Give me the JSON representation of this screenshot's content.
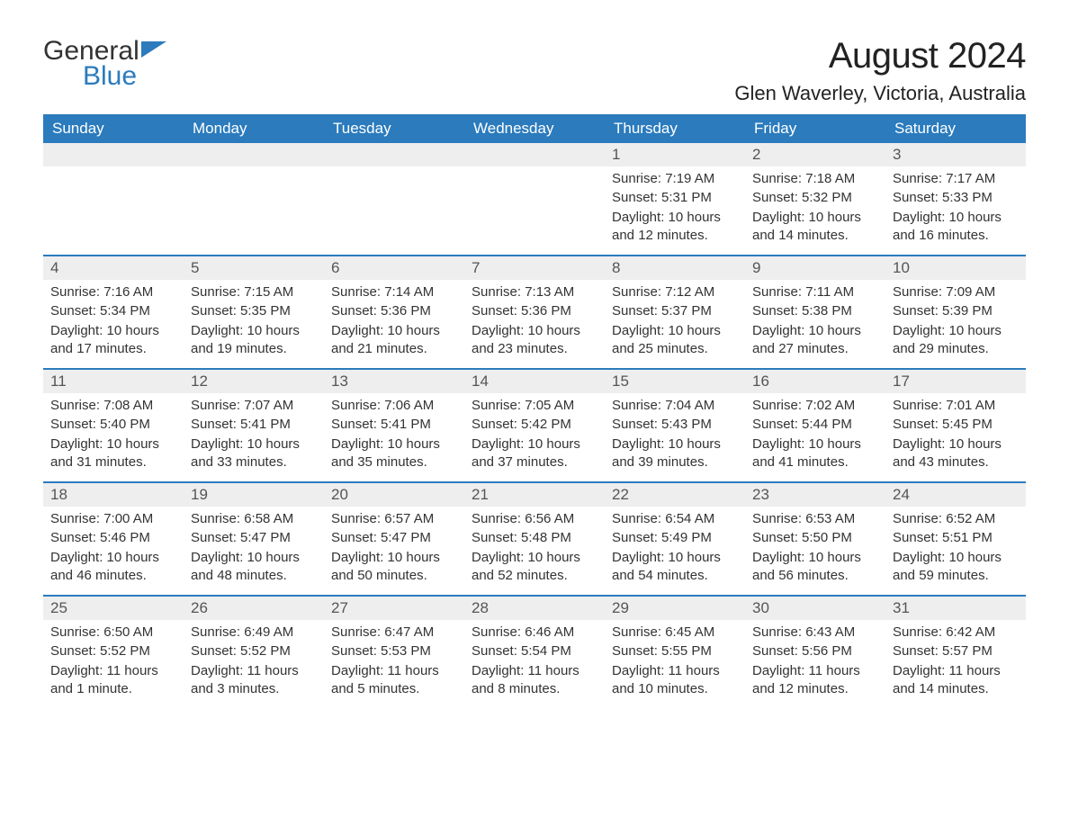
{
  "logo": {
    "general": "General",
    "blue": "Blue",
    "flag_color": "#2b7bbd"
  },
  "header": {
    "month_title": "August 2024",
    "location": "Glen Waverley, Victoria, Australia"
  },
  "styling": {
    "header_bg": "#2b7bbd",
    "header_text": "#ffffff",
    "daynum_bg": "#eeeeee",
    "daynum_text": "#555555",
    "body_text": "#333333",
    "row_border": "#2b7bbd",
    "page_bg": "#ffffff",
    "month_title_fontsize": 40,
    "location_fontsize": 22,
    "weekday_fontsize": 17,
    "body_fontsize": 15
  },
  "weekdays": [
    "Sunday",
    "Monday",
    "Tuesday",
    "Wednesday",
    "Thursday",
    "Friday",
    "Saturday"
  ],
  "weeks": [
    [
      null,
      null,
      null,
      null,
      {
        "day": "1",
        "sunrise": "Sunrise: 7:19 AM",
        "sunset": "Sunset: 5:31 PM",
        "daylight": "Daylight: 10 hours and 12 minutes."
      },
      {
        "day": "2",
        "sunrise": "Sunrise: 7:18 AM",
        "sunset": "Sunset: 5:32 PM",
        "daylight": "Daylight: 10 hours and 14 minutes."
      },
      {
        "day": "3",
        "sunrise": "Sunrise: 7:17 AM",
        "sunset": "Sunset: 5:33 PM",
        "daylight": "Daylight: 10 hours and 16 minutes."
      }
    ],
    [
      {
        "day": "4",
        "sunrise": "Sunrise: 7:16 AM",
        "sunset": "Sunset: 5:34 PM",
        "daylight": "Daylight: 10 hours and 17 minutes."
      },
      {
        "day": "5",
        "sunrise": "Sunrise: 7:15 AM",
        "sunset": "Sunset: 5:35 PM",
        "daylight": "Daylight: 10 hours and 19 minutes."
      },
      {
        "day": "6",
        "sunrise": "Sunrise: 7:14 AM",
        "sunset": "Sunset: 5:36 PM",
        "daylight": "Daylight: 10 hours and 21 minutes."
      },
      {
        "day": "7",
        "sunrise": "Sunrise: 7:13 AM",
        "sunset": "Sunset: 5:36 PM",
        "daylight": "Daylight: 10 hours and 23 minutes."
      },
      {
        "day": "8",
        "sunrise": "Sunrise: 7:12 AM",
        "sunset": "Sunset: 5:37 PM",
        "daylight": "Daylight: 10 hours and 25 minutes."
      },
      {
        "day": "9",
        "sunrise": "Sunrise: 7:11 AM",
        "sunset": "Sunset: 5:38 PM",
        "daylight": "Daylight: 10 hours and 27 minutes."
      },
      {
        "day": "10",
        "sunrise": "Sunrise: 7:09 AM",
        "sunset": "Sunset: 5:39 PM",
        "daylight": "Daylight: 10 hours and 29 minutes."
      }
    ],
    [
      {
        "day": "11",
        "sunrise": "Sunrise: 7:08 AM",
        "sunset": "Sunset: 5:40 PM",
        "daylight": "Daylight: 10 hours and 31 minutes."
      },
      {
        "day": "12",
        "sunrise": "Sunrise: 7:07 AM",
        "sunset": "Sunset: 5:41 PM",
        "daylight": "Daylight: 10 hours and 33 minutes."
      },
      {
        "day": "13",
        "sunrise": "Sunrise: 7:06 AM",
        "sunset": "Sunset: 5:41 PM",
        "daylight": "Daylight: 10 hours and 35 minutes."
      },
      {
        "day": "14",
        "sunrise": "Sunrise: 7:05 AM",
        "sunset": "Sunset: 5:42 PM",
        "daylight": "Daylight: 10 hours and 37 minutes."
      },
      {
        "day": "15",
        "sunrise": "Sunrise: 7:04 AM",
        "sunset": "Sunset: 5:43 PM",
        "daylight": "Daylight: 10 hours and 39 minutes."
      },
      {
        "day": "16",
        "sunrise": "Sunrise: 7:02 AM",
        "sunset": "Sunset: 5:44 PM",
        "daylight": "Daylight: 10 hours and 41 minutes."
      },
      {
        "day": "17",
        "sunrise": "Sunrise: 7:01 AM",
        "sunset": "Sunset: 5:45 PM",
        "daylight": "Daylight: 10 hours and 43 minutes."
      }
    ],
    [
      {
        "day": "18",
        "sunrise": "Sunrise: 7:00 AM",
        "sunset": "Sunset: 5:46 PM",
        "daylight": "Daylight: 10 hours and 46 minutes."
      },
      {
        "day": "19",
        "sunrise": "Sunrise: 6:58 AM",
        "sunset": "Sunset: 5:47 PM",
        "daylight": "Daylight: 10 hours and 48 minutes."
      },
      {
        "day": "20",
        "sunrise": "Sunrise: 6:57 AM",
        "sunset": "Sunset: 5:47 PM",
        "daylight": "Daylight: 10 hours and 50 minutes."
      },
      {
        "day": "21",
        "sunrise": "Sunrise: 6:56 AM",
        "sunset": "Sunset: 5:48 PM",
        "daylight": "Daylight: 10 hours and 52 minutes."
      },
      {
        "day": "22",
        "sunrise": "Sunrise: 6:54 AM",
        "sunset": "Sunset: 5:49 PM",
        "daylight": "Daylight: 10 hours and 54 minutes."
      },
      {
        "day": "23",
        "sunrise": "Sunrise: 6:53 AM",
        "sunset": "Sunset: 5:50 PM",
        "daylight": "Daylight: 10 hours and 56 minutes."
      },
      {
        "day": "24",
        "sunrise": "Sunrise: 6:52 AM",
        "sunset": "Sunset: 5:51 PM",
        "daylight": "Daylight: 10 hours and 59 minutes."
      }
    ],
    [
      {
        "day": "25",
        "sunrise": "Sunrise: 6:50 AM",
        "sunset": "Sunset: 5:52 PM",
        "daylight": "Daylight: 11 hours and 1 minute."
      },
      {
        "day": "26",
        "sunrise": "Sunrise: 6:49 AM",
        "sunset": "Sunset: 5:52 PM",
        "daylight": "Daylight: 11 hours and 3 minutes."
      },
      {
        "day": "27",
        "sunrise": "Sunrise: 6:47 AM",
        "sunset": "Sunset: 5:53 PM",
        "daylight": "Daylight: 11 hours and 5 minutes."
      },
      {
        "day": "28",
        "sunrise": "Sunrise: 6:46 AM",
        "sunset": "Sunset: 5:54 PM",
        "daylight": "Daylight: 11 hours and 8 minutes."
      },
      {
        "day": "29",
        "sunrise": "Sunrise: 6:45 AM",
        "sunset": "Sunset: 5:55 PM",
        "daylight": "Daylight: 11 hours and 10 minutes."
      },
      {
        "day": "30",
        "sunrise": "Sunrise: 6:43 AM",
        "sunset": "Sunset: 5:56 PM",
        "daylight": "Daylight: 11 hours and 12 minutes."
      },
      {
        "day": "31",
        "sunrise": "Sunrise: 6:42 AM",
        "sunset": "Sunset: 5:57 PM",
        "daylight": "Daylight: 11 hours and 14 minutes."
      }
    ]
  ]
}
